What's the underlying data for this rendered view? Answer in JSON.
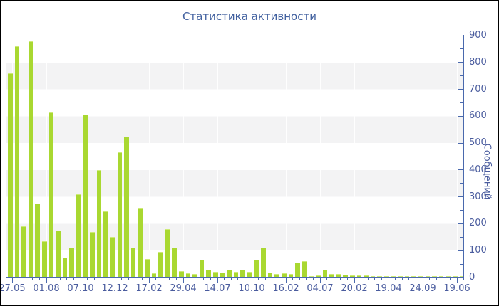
{
  "title": "Статистика активности",
  "colors": {
    "bar": "#a9d831",
    "bar_highlight": "#cdea77",
    "axis": "#4a69ad",
    "tick_text": "#4a5c9e",
    "title_text": "#41609f",
    "stripe": "#f3f3f4",
    "background": "#ffffff",
    "frame_border": "#000000"
  },
  "y_axis": {
    "label": "Сообщений",
    "tick_labels": [
      "0",
      "100",
      "200",
      "300",
      "400",
      "500",
      "600",
      "700",
      "800",
      "900"
    ]
  },
  "x_axis": {
    "tick_labels": [
      "27.05",
      "01.08",
      "07.10",
      "12.12",
      "17.02",
      "29.04",
      "14.07",
      "10.10",
      "16.02",
      "04.07",
      "20.02",
      "19.04",
      "24.09",
      "19.06"
    ]
  },
  "chart_data": {
    "type": "bar",
    "title": "Статистика активности",
    "xlabel": "",
    "ylabel": "Сообщений",
    "ylim": [
      0,
      900
    ],
    "y_major_step": 100,
    "y_minor_step": 50,
    "grid": "alternating horizontal bands every 100 units",
    "legend": "none",
    "x_tick_labels": [
      "27.05",
      "01.08",
      "07.10",
      "12.12",
      "17.02",
      "29.04",
      "14.07",
      "10.10",
      "16.02",
      "04.07",
      "20.02",
      "19.04",
      "24.09",
      "19.06"
    ],
    "bars_per_label_interval": 5,
    "series": [
      {
        "name": "Сообщений",
        "values": [
          760,
          860,
          190,
          880,
          275,
          135,
          615,
          175,
          75,
          110,
          310,
          605,
          170,
          400,
          245,
          150,
          465,
          525,
          110,
          260,
          70,
          15,
          95,
          180,
          110,
          25,
          17,
          13,
          65,
          30,
          22,
          18,
          30,
          22,
          28,
          22,
          65,
          110,
          18,
          12,
          16,
          12,
          55,
          60,
          6,
          9,
          30,
          14,
          12,
          10,
          9,
          8,
          7,
          6,
          6,
          5,
          5,
          5,
          5,
          4,
          4,
          4,
          4,
          3,
          3,
          3,
          4
        ]
      }
    ]
  }
}
